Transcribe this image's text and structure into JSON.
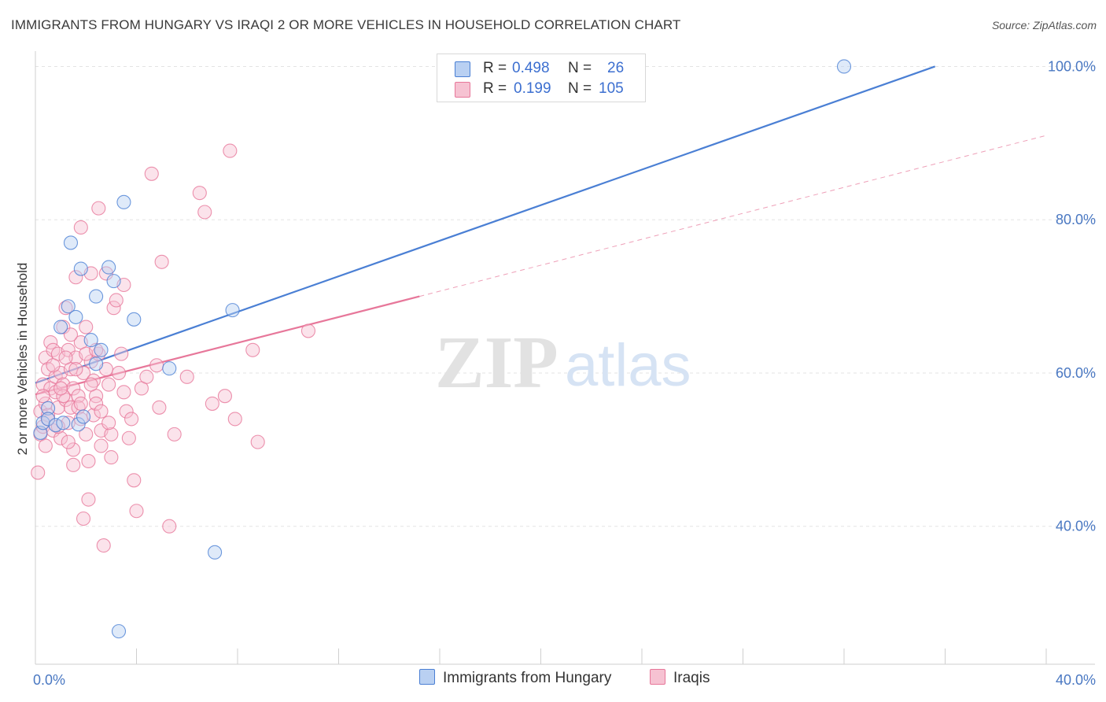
{
  "title": "IMMIGRANTS FROM HUNGARY VS IRAQI 2 OR MORE VEHICLES IN HOUSEHOLD CORRELATION CHART",
  "source": "Source: ZipAtlas.com",
  "watermark": {
    "zip": "ZIP",
    "atlas": "atlas"
  },
  "colors": {
    "blue": "#4a7fd4",
    "blue_fill": "#b9d0f2",
    "pink": "#e7779a",
    "pink_fill": "#f6c2d2",
    "axis_text": "#4a78c2",
    "grid": "#e3e3e3"
  },
  "legend": {
    "rows": [
      {
        "r_label": "R =",
        "r_value": "0.498",
        "n_label": "N =",
        "n_value": "26"
      },
      {
        "r_label": "R =",
        "r_value": "0.199",
        "n_label": "N =",
        "n_value": "105"
      }
    ]
  },
  "bottom_legend": [
    "Immigrants from Hungary",
    "Iraqis"
  ],
  "chart_data": {
    "type": "scatter",
    "title": "IMMIGRANTS FROM HUNGARY VS IRAQI 2 OR MORE VEHICLES IN HOUSEHOLD CORRELATION CHART",
    "xlabel": "",
    "ylabel": "2 or more Vehicles in Household",
    "xlim": [
      0,
      40
    ],
    "ylim": [
      22,
      102
    ],
    "x_tick_labels": [
      "0.0%",
      "40.0%"
    ],
    "y_ticks": [
      40,
      60,
      80,
      100
    ],
    "y_tick_labels": [
      "40.0%",
      "60.0%",
      "80.0%",
      "100.0%"
    ],
    "grid": true,
    "legend_position": "top-center",
    "series": [
      {
        "name": "Immigrants from Hungary",
        "color": "#4a7fd4",
        "points": [
          [
            0.2,
            52.2
          ],
          [
            0.3,
            53.5
          ],
          [
            0.5,
            55.4
          ],
          [
            0.5,
            54.0
          ],
          [
            0.8,
            53.2
          ],
          [
            1.0,
            66.0
          ],
          [
            1.1,
            53.5
          ],
          [
            1.3,
            68.7
          ],
          [
            1.4,
            77.0
          ],
          [
            1.6,
            67.3
          ],
          [
            1.7,
            53.3
          ],
          [
            1.8,
            73.6
          ],
          [
            1.9,
            54.3
          ],
          [
            2.2,
            64.3
          ],
          [
            2.4,
            61.2
          ],
          [
            2.4,
            70.0
          ],
          [
            2.6,
            63.0
          ],
          [
            2.9,
            73.8
          ],
          [
            3.1,
            72.0
          ],
          [
            3.3,
            26.3
          ],
          [
            3.5,
            82.3
          ],
          [
            3.9,
            67.0
          ],
          [
            5.3,
            60.6
          ],
          [
            7.1,
            36.6
          ],
          [
            7.8,
            68.2
          ],
          [
            32.0,
            100.0
          ]
        ],
        "trend": {
          "x": [
            0.0,
            35.6
          ],
          "y": [
            58.7,
            100.0
          ],
          "style": "solid"
        }
      },
      {
        "name": "Iraqis",
        "color": "#e7779a",
        "points": [
          [
            0.1,
            47.0
          ],
          [
            0.2,
            52.0
          ],
          [
            0.2,
            55.0
          ],
          [
            0.3,
            53.0
          ],
          [
            0.3,
            58.5
          ],
          [
            0.4,
            62.0
          ],
          [
            0.4,
            56.0
          ],
          [
            0.5,
            54.5
          ],
          [
            0.5,
            60.5
          ],
          [
            0.6,
            64.0
          ],
          [
            0.6,
            58.0
          ],
          [
            0.7,
            52.5
          ],
          [
            0.7,
            63.0
          ],
          [
            0.8,
            59.5
          ],
          [
            0.8,
            57.5
          ],
          [
            0.9,
            62.5
          ],
          [
            0.9,
            55.5
          ],
          [
            1.0,
            51.5
          ],
          [
            1.0,
            60.0
          ],
          [
            1.1,
            66.0
          ],
          [
            1.1,
            58.5
          ],
          [
            1.2,
            68.5
          ],
          [
            1.2,
            56.5
          ],
          [
            1.3,
            63.0
          ],
          [
            1.3,
            53.5
          ],
          [
            1.4,
            60.5
          ],
          [
            1.4,
            55.5
          ],
          [
            1.5,
            58.0
          ],
          [
            1.5,
            48.0
          ],
          [
            1.5,
            50.0
          ],
          [
            1.6,
            72.5
          ],
          [
            1.6,
            62.0
          ],
          [
            1.7,
            57.0
          ],
          [
            1.7,
            55.5
          ],
          [
            1.8,
            64.0
          ],
          [
            1.8,
            54.0
          ],
          [
            1.8,
            79.0
          ],
          [
            1.9,
            60.0
          ],
          [
            1.9,
            41.0
          ],
          [
            2.0,
            66.0
          ],
          [
            2.0,
            52.0
          ],
          [
            2.1,
            48.5
          ],
          [
            2.1,
            43.5
          ],
          [
            2.2,
            61.5
          ],
          [
            2.2,
            73.0
          ],
          [
            2.3,
            59.0
          ],
          [
            2.3,
            54.5
          ],
          [
            2.4,
            57.0
          ],
          [
            2.4,
            56.0
          ],
          [
            2.5,
            81.5
          ],
          [
            2.5,
            62.5
          ],
          [
            2.6,
            50.5
          ],
          [
            2.6,
            52.5
          ],
          [
            2.7,
            37.5
          ],
          [
            2.8,
            73.0
          ],
          [
            2.8,
            60.5
          ],
          [
            2.9,
            58.5
          ],
          [
            3.0,
            52.0
          ],
          [
            3.1,
            68.5
          ],
          [
            3.2,
            69.5
          ],
          [
            3.3,
            60.0
          ],
          [
            3.4,
            62.5
          ],
          [
            3.5,
            71.5
          ],
          [
            3.5,
            57.5
          ],
          [
            3.6,
            55.0
          ],
          [
            3.7,
            51.5
          ],
          [
            3.8,
            54.0
          ],
          [
            3.9,
            46.0
          ],
          [
            4.0,
            42.0
          ],
          [
            4.2,
            58.0
          ],
          [
            4.4,
            59.5
          ],
          [
            4.6,
            86.0
          ],
          [
            4.8,
            61.0
          ],
          [
            4.9,
            55.5
          ],
          [
            5.0,
            74.5
          ],
          [
            5.3,
            40.0
          ],
          [
            5.5,
            52.0
          ],
          [
            6.0,
            59.5
          ],
          [
            6.5,
            83.5
          ],
          [
            6.7,
            81.0
          ],
          [
            7.0,
            56.0
          ],
          [
            7.5,
            57.0
          ],
          [
            7.7,
            89.0
          ],
          [
            7.9,
            54.0
          ],
          [
            8.6,
            63.0
          ],
          [
            8.8,
            51.0
          ],
          [
            10.8,
            65.5
          ],
          [
            0.3,
            57.0
          ],
          [
            0.5,
            54.0
          ],
          [
            0.7,
            61.0
          ],
          [
            0.9,
            53.0
          ],
          [
            1.1,
            57.0
          ],
          [
            1.2,
            62.0
          ],
          [
            1.4,
            65.0
          ],
          [
            1.6,
            60.5
          ],
          [
            1.8,
            56.0
          ],
          [
            2.0,
            62.5
          ],
          [
            2.2,
            58.5
          ],
          [
            2.4,
            63.0
          ],
          [
            2.6,
            55.0
          ],
          [
            3.0,
            49.0
          ],
          [
            1.0,
            58.0
          ],
          [
            0.4,
            50.5
          ],
          [
            1.3,
            51.0
          ],
          [
            2.9,
            53.5
          ]
        ],
        "trend": {
          "x": [
            0.0,
            15.2
          ],
          "y": [
            57.2,
            70.0
          ],
          "style": "solid"
        },
        "trend_extension": {
          "x": [
            15.2,
            40.0
          ],
          "y": [
            70.0,
            91.0
          ],
          "style": "dashed"
        }
      }
    ]
  }
}
